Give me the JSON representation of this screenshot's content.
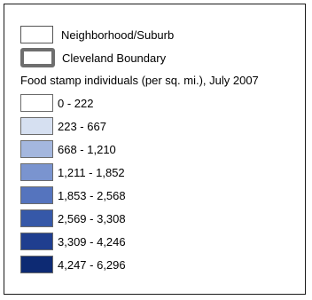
{
  "legend": {
    "neighborhood_label": "Neighborhood/Suburb",
    "boundary_label": "Cleveland Boundary",
    "heading": "Food stamp individuals (per sq. mi.), July 2007",
    "classes": [
      {
        "label": "0 - 222",
        "color": "#ffffff"
      },
      {
        "label": "223 - 667",
        "color": "#d6e0f1"
      },
      {
        "label": "668 - 1,210",
        "color": "#a4b7de"
      },
      {
        "label": "1,211 - 1,852",
        "color": "#7a94cf"
      },
      {
        "label": "1,853 - 2,568",
        "color": "#5574be"
      },
      {
        "label": "2,569 - 3,308",
        "color": "#3658a8"
      },
      {
        "label": "3,309 - 4,246",
        "color": "#1f3e8f"
      },
      {
        "label": "4,247 - 6,296",
        "color": "#0d2a73"
      }
    ]
  }
}
